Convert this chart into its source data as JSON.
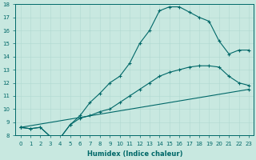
{
  "xlabel": "Humidex (Indice chaleur)",
  "bg_color": "#c8e8e0",
  "grid_color": "#b0d8d0",
  "line_color": "#006868",
  "xlim": [
    -0.5,
    23.5
  ],
  "ylim": [
    8,
    18
  ],
  "yticks": [
    8,
    9,
    10,
    11,
    12,
    13,
    14,
    15,
    16,
    17,
    18
  ],
  "xticks": [
    0,
    1,
    2,
    3,
    4,
    5,
    6,
    7,
    8,
    9,
    10,
    11,
    12,
    13,
    14,
    15,
    16,
    17,
    18,
    19,
    20,
    21,
    22,
    23
  ],
  "line1_x": [
    0,
    1,
    2,
    3,
    4,
    5,
    6,
    7,
    8,
    9,
    10,
    11,
    12,
    13,
    14,
    15,
    16,
    17,
    18,
    19,
    20,
    21,
    22,
    23
  ],
  "line1_y": [
    8.6,
    8.5,
    8.6,
    7.9,
    7.8,
    8.8,
    9.5,
    10.5,
    11.2,
    12.0,
    12.5,
    13.5,
    15.0,
    16.0,
    17.5,
    17.8,
    17.8,
    17.4,
    17.0,
    16.7,
    15.2,
    14.2,
    14.5,
    14.5
  ],
  "line2_x": [
    0,
    1,
    2,
    3,
    4,
    5,
    6,
    7,
    8,
    9,
    10,
    11,
    12,
    13,
    14,
    15,
    16,
    17,
    18,
    19,
    20,
    21,
    22,
    23
  ],
  "line2_y": [
    8.6,
    8.5,
    8.6,
    7.9,
    7.8,
    8.8,
    9.3,
    9.5,
    9.8,
    10.0,
    10.5,
    11.0,
    11.5,
    12.0,
    12.5,
    12.8,
    13.0,
    13.2,
    13.3,
    13.3,
    13.2,
    12.5,
    12.0,
    11.8
  ],
  "line3_x": [
    0,
    23
  ],
  "line3_y": [
    8.6,
    11.5
  ]
}
